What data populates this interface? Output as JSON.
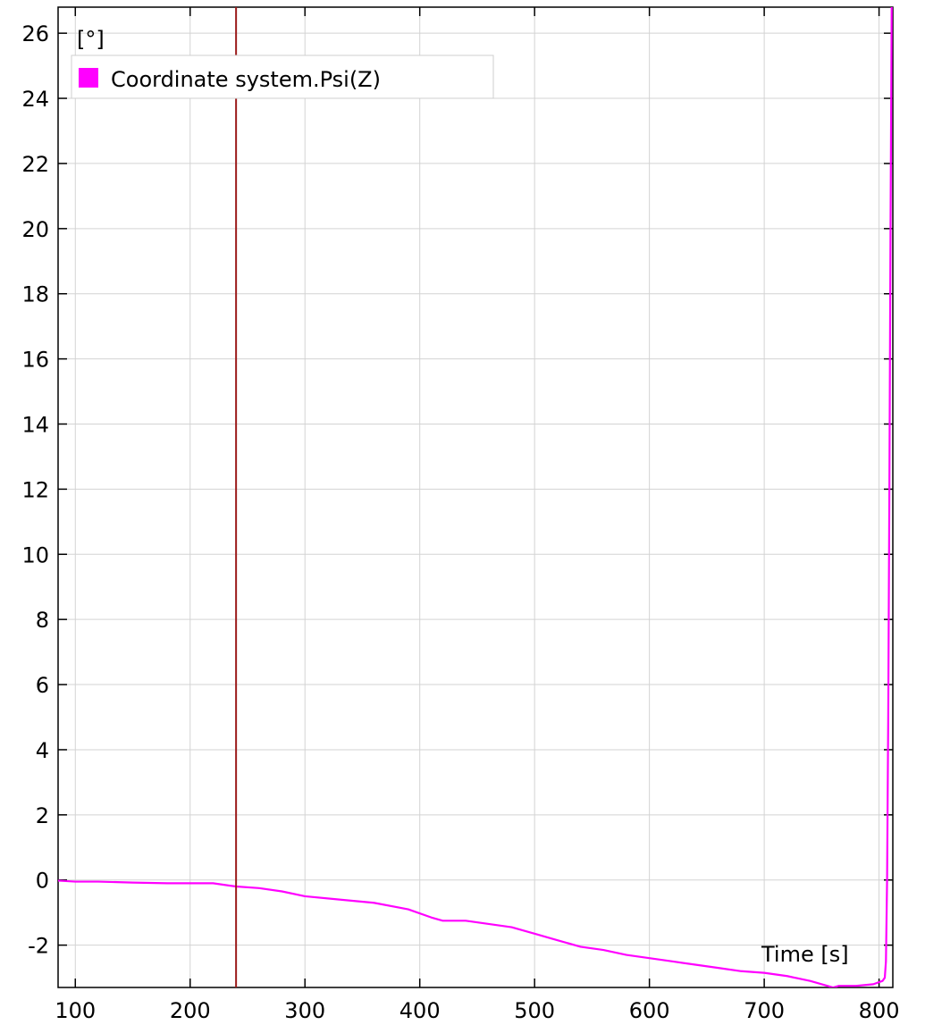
{
  "chart_data": {
    "type": "line",
    "title": "",
    "xlabel": "Time [s]",
    "ylabel": "[°]",
    "xlim": [
      85,
      812
    ],
    "ylim": [
      -3.3,
      26.8
    ],
    "x_ticks": [
      100,
      200,
      300,
      400,
      500,
      600,
      700,
      800
    ],
    "y_ticks": [
      -2,
      0,
      2,
      4,
      6,
      8,
      10,
      12,
      14,
      16,
      18,
      20,
      22,
      24,
      26
    ],
    "grid": true,
    "legend_position": "top-left",
    "series": [
      {
        "name": "Coordinate system.Psi(Z)",
        "color": "#FF00FF",
        "x": [
          85,
          100,
          120,
          150,
          180,
          200,
          220,
          240,
          260,
          280,
          300,
          330,
          360,
          390,
          410,
          420,
          440,
          460,
          480,
          500,
          520,
          540,
          560,
          580,
          600,
          620,
          640,
          660,
          680,
          700,
          720,
          740,
          760,
          765,
          780,
          795,
          803,
          805,
          806,
          807,
          808,
          809,
          810,
          811,
          812
        ],
        "y": [
          -0.02,
          -0.05,
          -0.05,
          -0.08,
          -0.1,
          -0.1,
          -0.1,
          -0.2,
          -0.25,
          -0.35,
          -0.5,
          -0.6,
          -0.7,
          -0.9,
          -1.15,
          -1.25,
          -1.25,
          -1.35,
          -1.45,
          -1.65,
          -1.85,
          -2.05,
          -2.15,
          -2.3,
          -2.4,
          -2.5,
          -2.6,
          -2.7,
          -2.8,
          -2.85,
          -2.95,
          -3.1,
          -3.3,
          -3.25,
          -3.25,
          -3.2,
          -3.1,
          -3.0,
          -2.5,
          0,
          5,
          12,
          20,
          26.8,
          27.5
        ]
      }
    ],
    "cursor": {
      "x": 240,
      "color": "#9B1B1B"
    }
  }
}
